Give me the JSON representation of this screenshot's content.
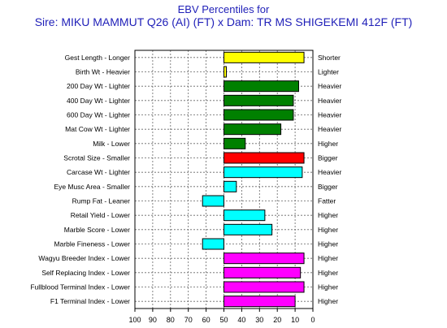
{
  "title": "EBV Percentiles for",
  "subtitle": "Sire: MIKU MAMMUT Q26 (AI) (FT) x Dam: TR MS SHIGEKEMI 412F (FT)",
  "chart_data": {
    "type": "bar",
    "orientation": "horizontal",
    "baseline": 50,
    "xlim": [
      100,
      0
    ],
    "x_reversed": true,
    "xticks": [
      100,
      90,
      80,
      70,
      60,
      50,
      40,
      30,
      20,
      10,
      0
    ],
    "grid": true,
    "left_labels": [
      "Gest Length - Longer",
      "Birth Wt - Heavier",
      "200 Day Wt - Lighter",
      "400 Day Wt - Lighter",
      "600 Day Wt - Lighter",
      "Mat Cow Wt - Lighter",
      "Milk - Lower",
      "Scrotal Size - Smaller",
      "Carcase Wt - Lighter",
      "Eye Musc Area - Smaller",
      "Rump Fat - Leaner",
      "Retail Yield - Lower",
      "Marble Score - Lower",
      "Marble Fineness - Lower",
      "Wagyu Breeder Index - Lower",
      "Self Replacing Index - Lower",
      "Fullblood Terminal Index - Lower",
      "F1 Terminal Index - Lower"
    ],
    "right_labels": [
      "Shorter",
      "Lighter",
      "Heavier",
      "Heavier",
      "Heavier",
      "Heavier",
      "Higher",
      "Bigger",
      "Heavier",
      "Bigger",
      "Fatter",
      "Higher",
      "Higher",
      "Higher",
      "Higher",
      "Higher",
      "Higher",
      "Higher"
    ],
    "values": [
      5,
      49,
      8,
      11,
      11,
      18,
      38,
      5,
      6,
      43,
      62,
      27,
      23,
      62,
      5,
      7,
      5,
      10
    ],
    "colors": [
      "#ffff00",
      "#ffff00",
      "#008000",
      "#008000",
      "#008000",
      "#008000",
      "#008000",
      "#ff0000",
      "#00ffff",
      "#00ffff",
      "#00ffff",
      "#00ffff",
      "#00ffff",
      "#00ffff",
      "#ff00ff",
      "#ff00ff",
      "#ff00ff",
      "#ff00ff"
    ]
  }
}
